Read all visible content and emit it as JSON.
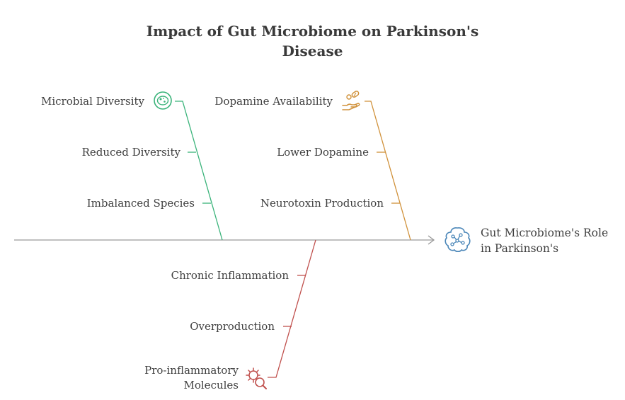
{
  "title": {
    "line1": "Impact of Gut Microbiome on Parkinson's",
    "line2": "Disease"
  },
  "head": {
    "line1": "Gut Microbiome's Role",
    "line2": "in Parkinson's",
    "icon": "brain-network-icon"
  },
  "branches": {
    "microbial": {
      "category": "Microbial Diversity",
      "icon": "microbe-cell-icon",
      "color": "#3ab37a",
      "causes": [
        "Reduced Diversity",
        "Imbalanced Species"
      ]
    },
    "dopamine": {
      "category": "Dopamine Availability",
      "icon": "pill-hand-icon",
      "color": "#d0913a",
      "causes": [
        "Lower Dopamine",
        "Neurotoxin Production"
      ]
    },
    "inflammation": {
      "category_line1": "Pro-inflammatory",
      "category_line2": "Molecules",
      "icon": "virus-magnifier-icon",
      "color": "#c0504d",
      "causes": [
        "Chronic Inflammation",
        "Overproduction"
      ]
    }
  },
  "spine_color": "#9a9a9a"
}
